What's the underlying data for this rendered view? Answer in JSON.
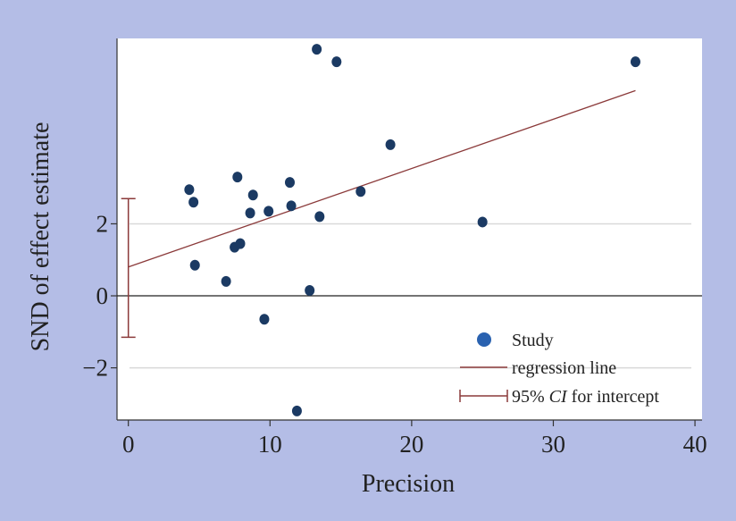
{
  "chart_data": {
    "type": "scatter",
    "title": "",
    "xlabel": "Precision",
    "ylabel": "SND of effect estimate",
    "xlim": [
      -0.8,
      40.5
    ],
    "ylim": [
      -3.45,
      7.15
    ],
    "xticks": [
      0,
      10,
      20,
      30,
      40
    ],
    "xtick_labels": [
      "0",
      "10",
      "20",
      "30",
      "40"
    ],
    "yticks": [
      -2,
      0,
      2
    ],
    "ytick_labels": [
      "−2",
      "0",
      "2"
    ],
    "grid": true,
    "legend_position": "bottom-right",
    "series": [
      {
        "name": "Study",
        "kind": "scatter",
        "color": "#1b3a63",
        "points": [
          {
            "x": 4.3,
            "y": 2.95
          },
          {
            "x": 4.6,
            "y": 2.6
          },
          {
            "x": 4.7,
            "y": 0.85
          },
          {
            "x": 6.9,
            "y": 0.4
          },
          {
            "x": 7.5,
            "y": 1.35
          },
          {
            "x": 7.7,
            "y": 3.3
          },
          {
            "x": 7.9,
            "y": 1.45
          },
          {
            "x": 8.6,
            "y": 2.3
          },
          {
            "x": 8.8,
            "y": 2.8
          },
          {
            "x": 9.6,
            "y": -0.65
          },
          {
            "x": 9.9,
            "y": 2.35
          },
          {
            "x": 11.4,
            "y": 3.15
          },
          {
            "x": 11.5,
            "y": 2.5
          },
          {
            "x": 11.9,
            "y": -3.2
          },
          {
            "x": 12.8,
            "y": 0.15
          },
          {
            "x": 13.3,
            "y": 6.85
          },
          {
            "x": 13.5,
            "y": 2.2
          },
          {
            "x": 14.7,
            "y": 6.5
          },
          {
            "x": 16.4,
            "y": 2.9
          },
          {
            "x": 18.5,
            "y": 4.2
          },
          {
            "x": 25.0,
            "y": 2.05
          },
          {
            "x": 35.8,
            "y": 6.5
          }
        ]
      },
      {
        "name": "regression line",
        "kind": "line",
        "color": "#8b3a3a",
        "x": [
          0,
          35.8
        ],
        "y": [
          0.8,
          5.7
        ]
      },
      {
        "name": "95% CI for intercept",
        "kind": "errorbar",
        "color": "#8b3a3a",
        "x": 0,
        "low": -1.15,
        "high": 2.7
      }
    ],
    "reference_line_y": 0,
    "legend": {
      "study": "Study",
      "regression": "regression line",
      "ci_prefix": "95% ",
      "ci_italic": "CI",
      "ci_suffix": " for intercept"
    }
  },
  "colors": {
    "background": "#b4bde6",
    "plot_area": "#ffffff",
    "grid": "#d9d9d9",
    "axis": "#333333",
    "point": "#1b3a63",
    "legend_marker": "#2a62b0",
    "regression": "#8b3a3a"
  }
}
